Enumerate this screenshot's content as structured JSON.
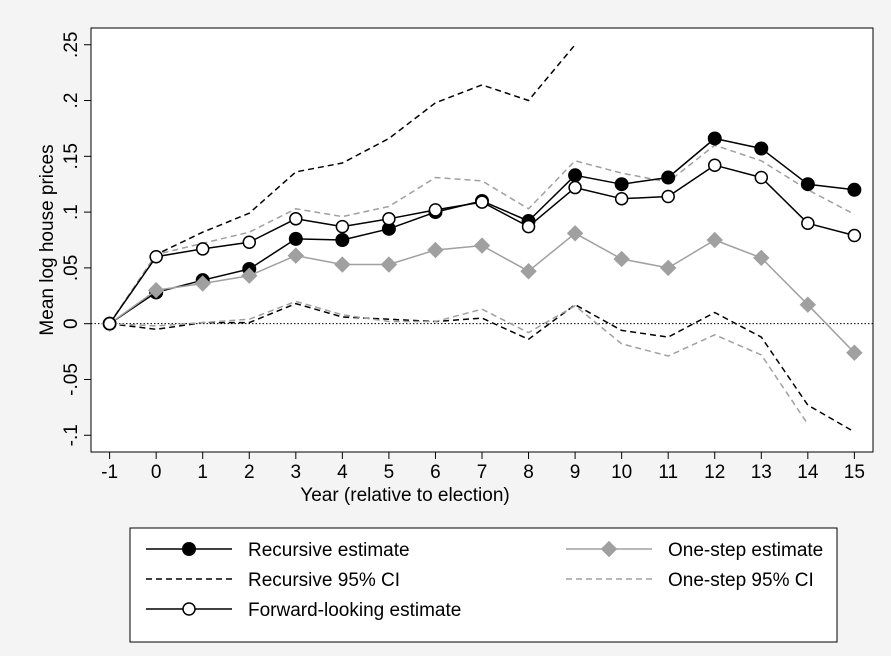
{
  "chart_data": {
    "type": "line",
    "title": "",
    "xlabel": "Year (relative to election)",
    "ylabel": "Mean log house prices",
    "x": [
      -1,
      0,
      1,
      2,
      3,
      4,
      5,
      6,
      7,
      8,
      9,
      10,
      11,
      12,
      13,
      14,
      15
    ],
    "xticks": [
      "-1",
      "0",
      "1",
      "2",
      "3",
      "4",
      "5",
      "6",
      "7",
      "8",
      "9",
      "10",
      "11",
      "12",
      "13",
      "14",
      "15"
    ],
    "yticks": [
      {
        "value": -0.1,
        "label": "-.1"
      },
      {
        "value": -0.05,
        "label": "-.05"
      },
      {
        "value": 0,
        "label": "0"
      },
      {
        "value": 0.05,
        "label": ".05"
      },
      {
        "value": 0.1,
        "label": ".1"
      },
      {
        "value": 0.15,
        "label": ".15"
      },
      {
        "value": 0.2,
        "label": ".2"
      },
      {
        "value": 0.25,
        "label": ".25"
      }
    ],
    "xlim": [
      -1.4,
      15.4
    ],
    "ylim": [
      -0.115,
      0.265
    ],
    "zero_reference_line": true,
    "grid": false,
    "legend_position": "bottom",
    "series": [
      {
        "key": "recursive_estimate",
        "name": "Recursive estimate",
        "color": "#000000",
        "marker": "filled-circle",
        "dash": "",
        "values": [
          0,
          0.028,
          0.039,
          0.049,
          0.076,
          0.075,
          0.085,
          0.1,
          0.11,
          0.092,
          0.133,
          0.125,
          0.131,
          0.166,
          0.157,
          0.125,
          0.12
        ]
      },
      {
        "key": "one_step_estimate",
        "name": "One-step estimate",
        "color": "#a0a0a0",
        "marker": "diamond",
        "dash": "",
        "values": [
          0,
          0.03,
          0.036,
          0.043,
          0.061,
          0.053,
          0.053,
          0.066,
          0.07,
          0.047,
          0.081,
          0.058,
          0.05,
          0.075,
          0.059,
          0.017,
          -0.026
        ]
      },
      {
        "key": "recursive_ci_upper",
        "name": "Recursive 95% CI",
        "color": "#000000",
        "marker": "none",
        "dash": "6,4",
        "values": [
          0,
          0.062,
          0.082,
          0.099,
          0.136,
          0.144,
          0.166,
          0.198,
          0.214,
          0.2,
          0.25,
          null,
          null,
          null,
          null,
          null,
          null
        ]
      },
      {
        "key": "recursive_ci_lower",
        "name": "",
        "color": "#000000",
        "marker": "none",
        "dash": "6,4",
        "values": [
          0,
          -0.005,
          0.001,
          0.001,
          0.018,
          0.006,
          0.004,
          0.002,
          0.005,
          -0.014,
          0.017,
          -0.006,
          -0.012,
          0.01,
          -0.012,
          -0.073,
          -0.097
        ]
      },
      {
        "key": "one_step_ci_upper",
        "name": "One-step 95% CI",
        "color": "#a0a0a0",
        "marker": "none",
        "dash": "6,4",
        "values": [
          0,
          0.062,
          0.072,
          0.082,
          0.103,
          0.096,
          0.105,
          0.131,
          0.128,
          0.103,
          0.146,
          0.135,
          0.127,
          0.16,
          0.146,
          0.12,
          0.098
        ]
      },
      {
        "key": "one_step_ci_lower",
        "name": "",
        "color": "#a0a0a0",
        "marker": "none",
        "dash": "6,4",
        "values": [
          0,
          -0.002,
          0.001,
          0.004,
          0.02,
          0.008,
          0.002,
          0.002,
          0.013,
          -0.008,
          0.016,
          -0.018,
          -0.029,
          -0.01,
          -0.028,
          -0.09,
          null
        ]
      },
      {
        "key": "forward_looking_estimate",
        "name": "Forward-looking estimate",
        "color": "#000000",
        "marker": "open-circle",
        "dash": "",
        "values": [
          0,
          0.06,
          0.067,
          0.073,
          0.094,
          0.087,
          0.094,
          0.102,
          0.109,
          0.087,
          0.122,
          0.112,
          0.114,
          0.142,
          0.131,
          0.09,
          0.079
        ]
      }
    ],
    "legend": [
      {
        "series": "recursive_estimate",
        "label": "Recursive estimate"
      },
      {
        "series": "one_step_estimate",
        "label": "One-step estimate"
      },
      {
        "series": "recursive_ci_upper",
        "label": "Recursive 95% CI"
      },
      {
        "series": "one_step_ci_upper",
        "label": "One-step 95% CI"
      },
      {
        "series": "forward_looking_estimate",
        "label": "Forward-looking estimate"
      }
    ]
  }
}
